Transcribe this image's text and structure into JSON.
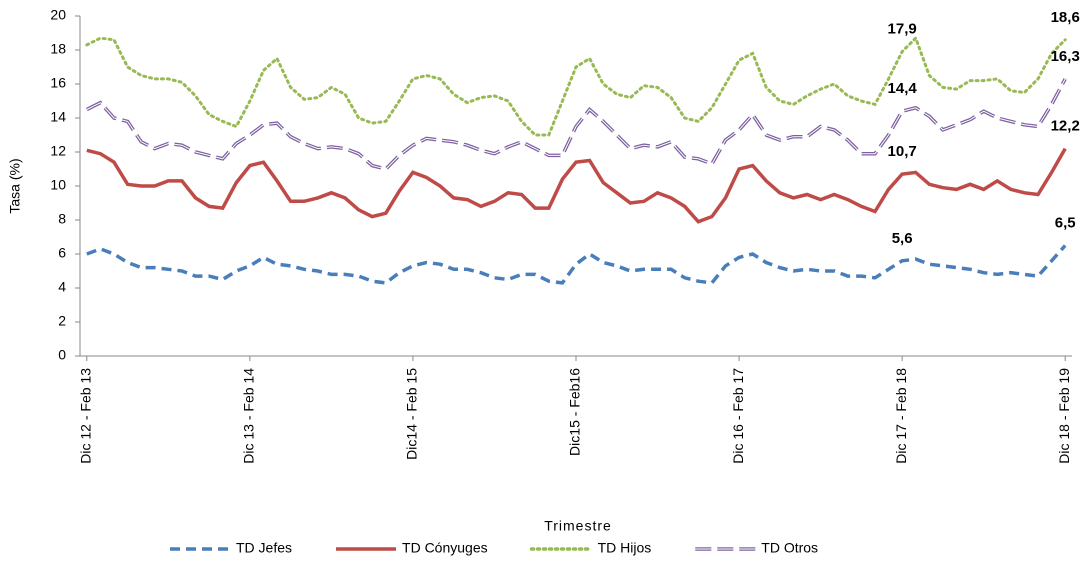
{
  "chart_data": {
    "type": "line",
    "y_label": "Tasa (%)",
    "x_label": "Trimestre",
    "categories": [
      "Dic 12 - Feb 13",
      null,
      null,
      null,
      null,
      null,
      null,
      null,
      null,
      null,
      null,
      null,
      "Dic 13 - Feb 14",
      null,
      null,
      null,
      null,
      null,
      null,
      null,
      null,
      null,
      null,
      null,
      "Dic14 - Feb 15",
      null,
      null,
      null,
      null,
      null,
      null,
      null,
      null,
      null,
      null,
      null,
      "Dic15 - Feb16",
      null,
      null,
      null,
      null,
      null,
      null,
      null,
      null,
      null,
      null,
      null,
      "Dic 16 - Feb 17",
      null,
      null,
      null,
      null,
      null,
      null,
      null,
      null,
      null,
      null,
      null,
      "Dic 17 - Feb 18",
      null,
      null,
      null,
      null,
      null,
      null,
      null,
      null,
      null,
      null,
      null,
      "Dic 18 - Feb 19"
    ],
    "ylim": [
      0,
      20
    ],
    "yticks": [
      0,
      2,
      4,
      6,
      8,
      10,
      12,
      14,
      16,
      18,
      20
    ],
    "series": [
      {
        "name": "TD Jefes",
        "color": "#4a7ebb",
        "dash": "dashed",
        "values": [
          6.0,
          6.3,
          6.0,
          5.5,
          5.2,
          5.2,
          5.1,
          5.0,
          4.7,
          4.7,
          4.5,
          5.0,
          5.3,
          5.8,
          5.4,
          5.3,
          5.1,
          5.0,
          4.8,
          4.8,
          4.7,
          4.4,
          4.3,
          4.9,
          5.3,
          5.5,
          5.4,
          5.1,
          5.1,
          4.9,
          4.6,
          4.5,
          4.8,
          4.8,
          4.4,
          4.3,
          5.4,
          6.0,
          5.5,
          5.3,
          5.0,
          5.1,
          5.1,
          5.1,
          4.6,
          4.4,
          4.3,
          5.3,
          5.8,
          6.0,
          5.5,
          5.2,
          5.0,
          5.1,
          5.0,
          5.0,
          4.7,
          4.7,
          4.6,
          5.1,
          5.6,
          5.7,
          5.4,
          5.3,
          5.2,
          5.1,
          4.9,
          4.8,
          4.9,
          4.8,
          4.7,
          5.6,
          6.5
        ],
        "value_labels": [
          null,
          null,
          null,
          null,
          null,
          null,
          null,
          null,
          null,
          null,
          null,
          null,
          null,
          null,
          null,
          null,
          null,
          null,
          null,
          null,
          null,
          null,
          null,
          null,
          null,
          null,
          null,
          null,
          null,
          null,
          null,
          null,
          null,
          null,
          null,
          null,
          null,
          null,
          null,
          null,
          null,
          null,
          null,
          null,
          null,
          null,
          null,
          null,
          null,
          null,
          null,
          null,
          null,
          null,
          null,
          null,
          null,
          null,
          null,
          null,
          "5,6",
          null,
          null,
          null,
          null,
          null,
          null,
          null,
          null,
          null,
          null,
          null,
          "6,5"
        ]
      },
      {
        "name": "TD Cónyuges",
        "color": "#be4b48",
        "dash": "solid",
        "values": [
          12.1,
          11.9,
          11.4,
          10.1,
          10.0,
          10.0,
          10.3,
          10.3,
          9.3,
          8.8,
          8.7,
          10.2,
          11.2,
          11.4,
          10.3,
          9.1,
          9.1,
          9.3,
          9.6,
          9.3,
          8.6,
          8.2,
          8.4,
          9.7,
          10.8,
          10.5,
          10.0,
          9.3,
          9.2,
          8.8,
          9.1,
          9.6,
          9.5,
          8.7,
          8.7,
          10.4,
          11.4,
          11.5,
          10.2,
          9.6,
          9.0,
          9.1,
          9.6,
          9.3,
          8.8,
          7.9,
          8.2,
          9.3,
          11.0,
          11.2,
          10.3,
          9.6,
          9.3,
          9.5,
          9.2,
          9.5,
          9.2,
          8.8,
          8.5,
          9.8,
          10.7,
          10.8,
          10.1,
          9.9,
          9.8,
          10.1,
          9.8,
          10.3,
          9.8,
          9.6,
          9.5,
          10.8,
          12.2
        ],
        "value_labels": [
          null,
          null,
          null,
          null,
          null,
          null,
          null,
          null,
          null,
          null,
          null,
          null,
          null,
          null,
          null,
          null,
          null,
          null,
          null,
          null,
          null,
          null,
          null,
          null,
          null,
          null,
          null,
          null,
          null,
          null,
          null,
          null,
          null,
          null,
          null,
          null,
          null,
          null,
          null,
          null,
          null,
          null,
          null,
          null,
          null,
          null,
          null,
          null,
          null,
          null,
          null,
          null,
          null,
          null,
          null,
          null,
          null,
          null,
          null,
          null,
          "10,7",
          null,
          null,
          null,
          null,
          null,
          null,
          null,
          null,
          null,
          null,
          null,
          "12,2"
        ]
      },
      {
        "name": "TD Hijos",
        "color": "#98b954",
        "dash": "dotted",
        "values": [
          18.3,
          18.7,
          18.6,
          17.0,
          16.5,
          16.3,
          16.3,
          16.1,
          15.3,
          14.2,
          13.8,
          13.5,
          15.0,
          16.8,
          17.5,
          15.8,
          15.1,
          15.2,
          15.8,
          15.4,
          14.0,
          13.7,
          13.8,
          15.0,
          16.3,
          16.5,
          16.3,
          15.4,
          14.9,
          15.2,
          15.3,
          15.0,
          13.8,
          13.0,
          13.0,
          15.0,
          17.0,
          17.5,
          16.0,
          15.4,
          15.2,
          15.9,
          15.8,
          15.2,
          14.0,
          13.8,
          14.6,
          16.0,
          17.4,
          17.8,
          15.8,
          15.0,
          14.8,
          15.3,
          15.7,
          16.0,
          15.3,
          15.0,
          14.8,
          16.3,
          17.9,
          18.7,
          16.5,
          15.8,
          15.7,
          16.2,
          16.2,
          16.3,
          15.6,
          15.5,
          16.3,
          17.8,
          18.6
        ],
        "value_labels": [
          null,
          null,
          null,
          null,
          null,
          null,
          null,
          null,
          null,
          null,
          null,
          null,
          null,
          null,
          null,
          null,
          null,
          null,
          null,
          null,
          null,
          null,
          null,
          null,
          null,
          null,
          null,
          null,
          null,
          null,
          null,
          null,
          null,
          null,
          null,
          null,
          null,
          null,
          null,
          null,
          null,
          null,
          null,
          null,
          null,
          null,
          null,
          null,
          null,
          null,
          null,
          null,
          null,
          null,
          null,
          null,
          null,
          null,
          null,
          null,
          "17,9",
          null,
          null,
          null,
          null,
          null,
          null,
          null,
          null,
          null,
          null,
          null,
          "18,6"
        ]
      },
      {
        "name": "TD Otros",
        "color": "#7d60a0",
        "dash": "longdash",
        "values": [
          14.5,
          14.9,
          14.0,
          13.8,
          12.6,
          12.2,
          12.5,
          12.4,
          12.0,
          11.8,
          11.6,
          12.5,
          13.0,
          13.6,
          13.7,
          12.9,
          12.5,
          12.2,
          12.3,
          12.2,
          11.9,
          11.2,
          11.0,
          11.8,
          12.4,
          12.8,
          12.7,
          12.6,
          12.4,
          12.1,
          11.9,
          12.3,
          12.6,
          12.2,
          11.8,
          11.8,
          13.5,
          14.5,
          13.8,
          13.0,
          12.2,
          12.4,
          12.3,
          12.6,
          11.7,
          11.6,
          11.3,
          12.7,
          13.3,
          14.2,
          13.0,
          12.7,
          12.9,
          12.9,
          13.5,
          13.3,
          12.7,
          11.9,
          11.9,
          13.0,
          14.4,
          14.6,
          14.1,
          13.3,
          13.6,
          13.9,
          14.4,
          14.0,
          13.8,
          13.6,
          13.5,
          14.8,
          16.3
        ],
        "value_labels": [
          null,
          null,
          null,
          null,
          null,
          null,
          null,
          null,
          null,
          null,
          null,
          null,
          null,
          null,
          null,
          null,
          null,
          null,
          null,
          null,
          null,
          null,
          null,
          null,
          null,
          null,
          null,
          null,
          null,
          null,
          null,
          null,
          null,
          null,
          null,
          null,
          null,
          null,
          null,
          null,
          null,
          null,
          null,
          null,
          null,
          null,
          null,
          null,
          null,
          null,
          null,
          null,
          null,
          null,
          null,
          null,
          null,
          null,
          null,
          null,
          "14,4",
          null,
          null,
          null,
          null,
          null,
          null,
          null,
          null,
          null,
          null,
          null,
          "16,3"
        ]
      }
    ]
  }
}
